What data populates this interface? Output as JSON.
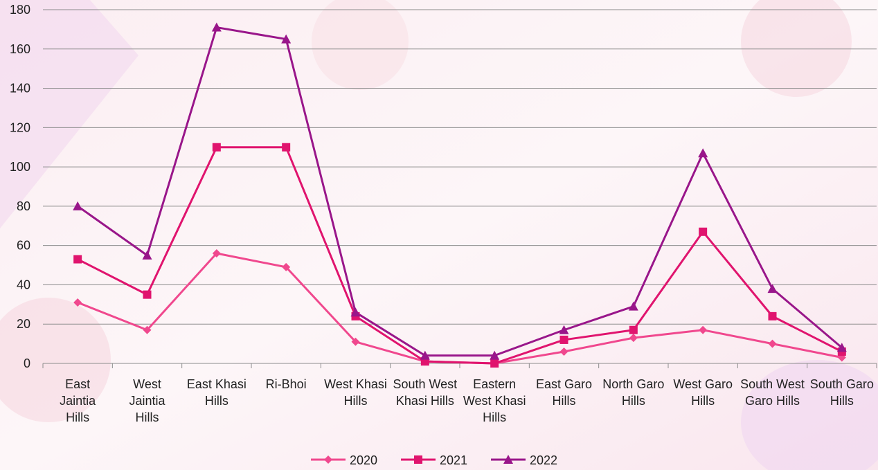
{
  "chart_data": {
    "type": "line",
    "categories": [
      "East Jaintia Hills",
      "West Jaintia Hills",
      "East Khasi Hills",
      "Ri-Bhoi",
      "West Khasi Hills",
      "South West Khasi Hills",
      "Eastern West Khasi Hills",
      "East Garo Hills",
      "North Garo Hills",
      "West Garo Hills",
      "South West Garo Hills",
      "South Garo Hills"
    ],
    "series": [
      {
        "name": "2020",
        "color": "#f0488e",
        "marker": "diamond",
        "values": [
          31,
          17,
          56,
          49,
          11,
          1,
          0,
          6,
          13,
          17,
          10,
          3
        ]
      },
      {
        "name": "2021",
        "color": "#e0146e",
        "marker": "square",
        "values": [
          53,
          35,
          110,
          110,
          24,
          1,
          0,
          12,
          17,
          67,
          24,
          6
        ]
      },
      {
        "name": "2022",
        "color": "#99168a",
        "marker": "triangle",
        "values": [
          80,
          55,
          171,
          165,
          26,
          4,
          4,
          17,
          29,
          107,
          38,
          8
        ]
      }
    ],
    "ylim": [
      0,
      180
    ],
    "yticks": [
      0,
      20,
      40,
      60,
      80,
      100,
      120,
      140,
      160,
      180
    ],
    "grid": true,
    "legend": "bottom"
  }
}
